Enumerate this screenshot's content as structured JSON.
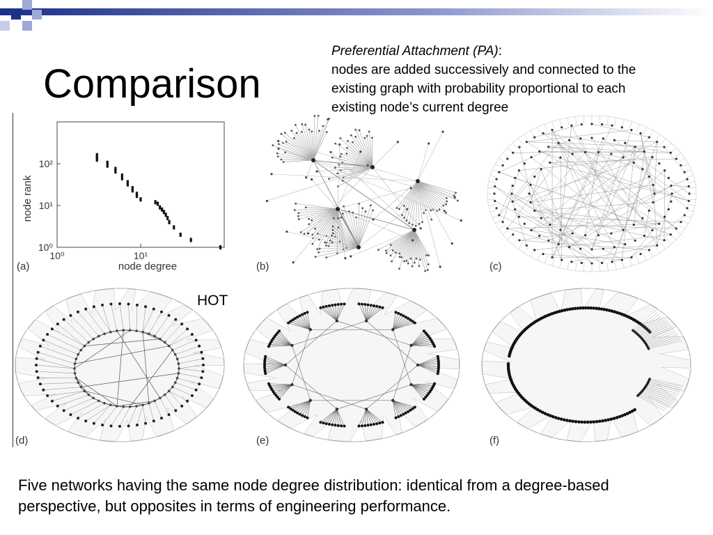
{
  "slide": {
    "title": "Comparison",
    "pa_heading": "Preferential Attachment (PA)",
    "pa_colon": ":",
    "pa_lines": [
      "nodes are added successively and connected to the",
      "existing graph with probability proportional to each",
      "existing node’s current degree"
    ],
    "hot_label": "HOT",
    "caption_lines": [
      "Five networks having the same node degree distribution: identical from a degree-based",
      "perspective, but opposites in terms of engineering performance."
    ]
  },
  "panels": {
    "a": {
      "label": "(a)"
    },
    "b": {
      "label": "(b)"
    },
    "c": {
      "label": "(c)"
    },
    "d": {
      "label": "(d)"
    },
    "e": {
      "label": "(e)"
    },
    "f": {
      "label": "(f)"
    }
  },
  "chart_data": {
    "type": "scatter",
    "xlabel": "node degree",
    "ylabel": "node rank",
    "xscale": "log",
    "yscale": "log",
    "x_tick_labels": [
      "10⁰",
      "10¹"
    ],
    "y_tick_labels": [
      "10⁰",
      "10¹",
      "10²"
    ],
    "xlim": [
      1,
      100
    ],
    "ylim": [
      1,
      1000
    ],
    "points": [
      {
        "x": 3,
        "y": 160
      },
      {
        "x": 3,
        "y": 140
      },
      {
        "x": 3,
        "y": 125
      },
      {
        "x": 4,
        "y": 105
      },
      {
        "x": 4,
        "y": 90
      },
      {
        "x": 5,
        "y": 75
      },
      {
        "x": 5,
        "y": 65
      },
      {
        "x": 6,
        "y": 52
      },
      {
        "x": 6,
        "y": 45
      },
      {
        "x": 7,
        "y": 36
      },
      {
        "x": 7,
        "y": 32
      },
      {
        "x": 8,
        "y": 26
      },
      {
        "x": 8,
        "y": 23
      },
      {
        "x": 9,
        "y": 19
      },
      {
        "x": 9,
        "y": 17
      },
      {
        "x": 10,
        "y": 14
      },
      {
        "x": 15,
        "y": 12
      },
      {
        "x": 16,
        "y": 11
      },
      {
        "x": 17,
        "y": 9
      },
      {
        "x": 18,
        "y": 8
      },
      {
        "x": 19,
        "y": 7
      },
      {
        "x": 20,
        "y": 6
      },
      {
        "x": 21,
        "y": 5
      },
      {
        "x": 22,
        "y": 4
      },
      {
        "x": 25,
        "y": 3
      },
      {
        "x": 30,
        "y": 2
      },
      {
        "x": 40,
        "y": 1.5
      },
      {
        "x": 90,
        "y": 1
      }
    ],
    "grid": false,
    "legend": "none"
  },
  "colors": {
    "accent_navy": "#1c2f8a",
    "accent_light": "#9fa8d6",
    "graph_line": "#9a9a9a",
    "graph_node": "#222222"
  }
}
